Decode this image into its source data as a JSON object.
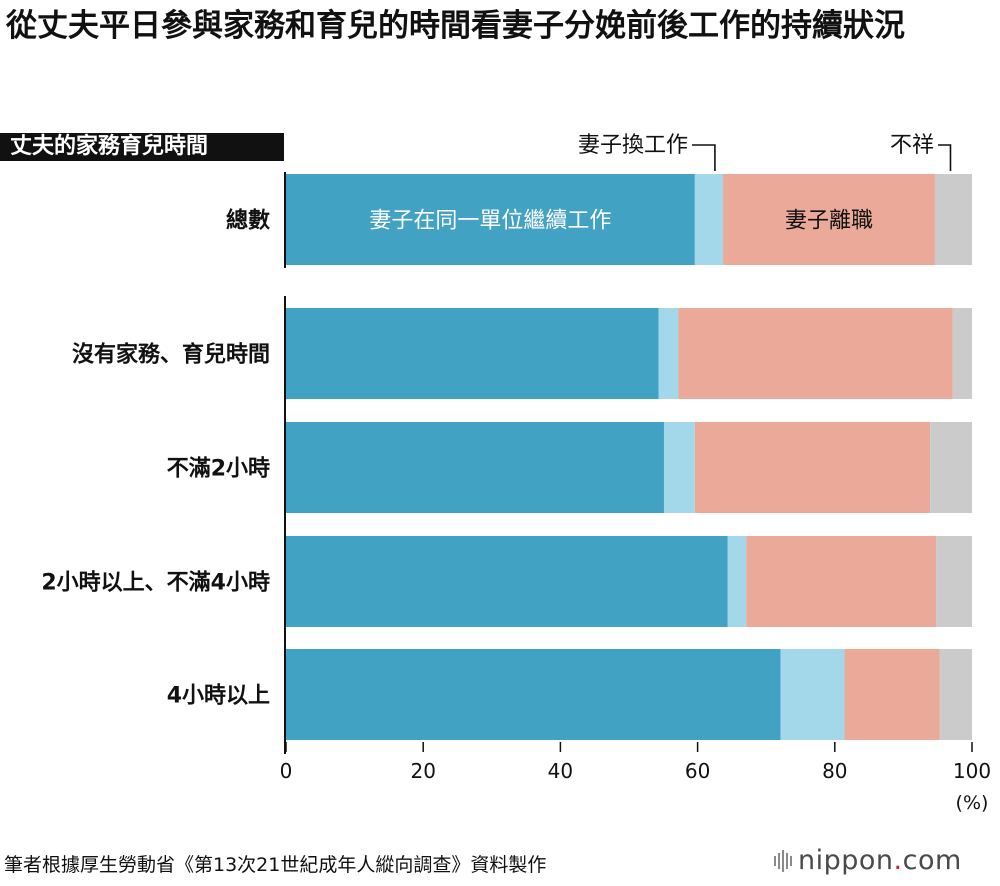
{
  "title": "從丈夫平日參與家務和育兒的時間看妻子分娩前後工作的持續狀況",
  "category_header": "丈夫的家務育兒時間",
  "source": "筆者根據厚生勞動省《第13次21世紀成年人縱向調查》資料製作",
  "logo": {
    "name": "nippon",
    "dot": ".",
    "suffix": "com"
  },
  "colors": {
    "continued": "#42a2c4",
    "changed": "#a3d8ea",
    "quit": "#eba99a",
    "unknown": "#cbcbcb",
    "logo_dot": "#cc1f1f"
  },
  "chart_data": {
    "type": "bar",
    "orientation": "horizontal",
    "stacked": true,
    "categories": [
      "總數",
      "沒有家務、育兒時間",
      "不滿2小時",
      "2小時以上、不滿4小時",
      "4小時以上"
    ],
    "series": [
      {
        "name": "妻子在同一單位繼續工作",
        "key": "continued",
        "values": [
          59.6,
          54.3,
          55.1,
          64.4,
          72.1
        ]
      },
      {
        "name": "妻子換工作",
        "key": "changed",
        "values": [
          4.1,
          2.9,
          4.5,
          2.7,
          9.3
        ]
      },
      {
        "name": "妻子離職",
        "key": "quit",
        "values": [
          30.9,
          40.0,
          34.3,
          27.7,
          13.9
        ]
      },
      {
        "name": "不祥",
        "key": "unknown",
        "values": [
          5.4,
          2.8,
          6.1,
          5.2,
          4.7
        ]
      }
    ],
    "xlim": [
      0,
      100
    ],
    "xticks": [
      0,
      20,
      40,
      60,
      80,
      100
    ],
    "xunit": "(%)",
    "grid": false,
    "legend": "inline"
  }
}
